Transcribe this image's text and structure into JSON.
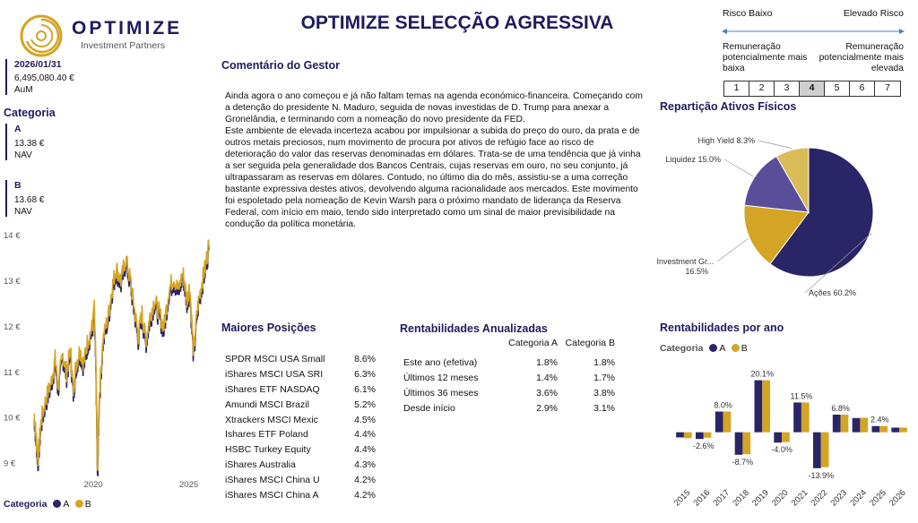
{
  "brand": {
    "name": "OPTIMIZE",
    "sub": "Investment Partners"
  },
  "title": "OPTIMIZE SELECÇÃO AGRESSIVA",
  "kpi": {
    "date": "2026/01/31",
    "aum_value": "6,495,080.40 €",
    "aum_label": "AuM"
  },
  "categoria_title": "Categoria",
  "classes": [
    {
      "name": "A",
      "value": "13.38 €",
      "label": "NAV"
    },
    {
      "name": "B",
      "value": "13.68 €",
      "label": "NAV"
    }
  ],
  "colors": {
    "navy": "#2a2566",
    "gold": "#d4a424",
    "purple": "#5a4d9a",
    "sand": "#d9bc55",
    "accent": "#1f1b5e"
  },
  "risk": {
    "low": "Risco Baixo",
    "high": "Elevado Risco",
    "low_desc": "Remuneração potencialmente mais baixa",
    "high_desc": "Remuneração potencialmente mais elevada",
    "levels": [
      "1",
      "2",
      "3",
      "4",
      "5",
      "6",
      "7"
    ],
    "selected": "4"
  },
  "comment": {
    "title": "Comentário do Gestor",
    "text": "Ainda agora o ano começou e já não faltam temas na agenda económico-financeira. Começando com a detenção do presidente N. Maduro, seguida de novas investidas de D. Trump para anexar a Gronelândia, e terminando com a nomeação do novo presidente da FED.\nEste ambiente de elevada incerteza acabou por impulsionar a subida do preço do ouro, da prata e de outros metais preciosos, num movimento de procura por ativos de refúgio face ao risco de deterioração do valor das reservas denominadas em dólares. Trata-se de uma tendência que já vinha a ser seguida pela generalidade dos Bancos Centrais, cujas reservas em ouro, no seu conjunto, já ultrapassaram as reservas em dólares. Contudo, no último dia do mês, assistiu-se a uma correção bastante expressiva destes ativos, devolvendo alguma racionalidade aos mercados. Este movimento foi espoletado pela nomeação de Kevin Warsh para o próximo mandato de liderança da Reserva Federal, com início em maio, tendo sido interpretado como um sinal de maior previsibilidade na condução da política monetária."
  },
  "positions": {
    "title": "Maiores Posições",
    "rows": [
      {
        "name": "SPDR MSCI USA Small",
        "weight": "8.6%"
      },
      {
        "name": "iShares MSCI USA SRI",
        "weight": "6.3%"
      },
      {
        "name": "iShares ETF NASDAQ",
        "weight": "6.1%"
      },
      {
        "name": "Amundi MSCI Brazil",
        "weight": "5.2%"
      },
      {
        "name": "Xtrackers MSCI Mexic",
        "weight": "4.5%"
      },
      {
        "name": "Ishares ETF Poland",
        "weight": "4.4%"
      },
      {
        "name": "HSBC Turkey Equity",
        "weight": "4.4%"
      },
      {
        "name": "iShares Australia",
        "weight": "4.3%"
      },
      {
        "name": "iShares MSCI China U",
        "weight": "4.2%"
      },
      {
        "name": "iShares MSCI China A",
        "weight": "4.2%"
      }
    ]
  },
  "annualized": {
    "title": "Rentabilidades Anualizadas",
    "col_a": "Categoria A",
    "col_b": "Categoria B",
    "rows": [
      {
        "label": "Este ano (efetiva)",
        "a": "1.8%",
        "b": "1.8%"
      },
      {
        "label": "Últimos 12 meses",
        "a": "1.4%",
        "b": "1.7%"
      },
      {
        "label": "Últimos 36 meses",
        "a": "3.6%",
        "b": "3.8%"
      },
      {
        "label": "Desde início",
        "a": "2.9%",
        "b": "3.1%"
      }
    ]
  },
  "legend": {
    "title": "Categoria",
    "a": "A",
    "b": "B"
  },
  "chart_data": [
    {
      "type": "line",
      "yticks": [
        "9 €",
        "10 €",
        "11 €",
        "12 €",
        "13 €",
        "14 €"
      ],
      "ylim": [
        8.6,
        14.1
      ],
      "xticks": [
        "2020",
        "2025"
      ],
      "xlim": [
        2016.8,
        2026.1
      ],
      "series": [
        {
          "name": "A",
          "color": "#2a2566"
        },
        {
          "name": "B",
          "color": "#d4a424"
        }
      ],
      "points": [
        [
          2016.9,
          10.1
        ],
        [
          2017.0,
          9.6
        ],
        [
          2017.1,
          9.1
        ],
        [
          2017.25,
          9.9
        ],
        [
          2017.5,
          10.4
        ],
        [
          2017.8,
          10.8
        ],
        [
          2018.0,
          11.3
        ],
        [
          2018.15,
          10.7
        ],
        [
          2018.4,
          11.4
        ],
        [
          2018.6,
          11.0
        ],
        [
          2018.8,
          11.5
        ],
        [
          2018.95,
          10.6
        ],
        [
          2019.1,
          11.2
        ],
        [
          2019.3,
          11.5
        ],
        [
          2019.5,
          11.2
        ],
        [
          2019.7,
          11.7
        ],
        [
          2019.95,
          12.0
        ],
        [
          2020.05,
          12.4
        ],
        [
          2020.15,
          10.8
        ],
        [
          2020.22,
          8.7
        ],
        [
          2020.3,
          10.4
        ],
        [
          2020.5,
          11.7
        ],
        [
          2020.8,
          12.3
        ],
        [
          2021.0,
          12.9
        ],
        [
          2021.2,
          13.3
        ],
        [
          2021.45,
          13.0
        ],
        [
          2021.7,
          13.5
        ],
        [
          2021.95,
          13.0
        ],
        [
          2022.15,
          12.4
        ],
        [
          2022.35,
          11.8
        ],
        [
          2022.55,
          12.3
        ],
        [
          2022.75,
          11.7
        ],
        [
          2022.95,
          12.2
        ],
        [
          2023.2,
          12.6
        ],
        [
          2023.45,
          12.3
        ],
        [
          2023.7,
          12.0
        ],
        [
          2023.95,
          12.8
        ],
        [
          2024.2,
          13.1
        ],
        [
          2024.45,
          12.8
        ],
        [
          2024.7,
          13.2
        ],
        [
          2024.9,
          12.6
        ],
        [
          2025.05,
          12.9
        ],
        [
          2025.25,
          11.4
        ],
        [
          2025.45,
          12.4
        ],
        [
          2025.65,
          12.9
        ],
        [
          2025.85,
          13.3
        ],
        [
          2026.05,
          13.8
        ]
      ]
    },
    {
      "type": "pie",
      "title": "Repartição Ativos Físicos",
      "slices": [
        {
          "label": "Ações 60.2%",
          "value": 60.2,
          "color": "#2a2566"
        },
        {
          "label": "Investment Gr...",
          "label2": "16.5%",
          "value": 16.5,
          "color": "#d4a424"
        },
        {
          "label": "Liquidez 15.0%",
          "value": 15.0,
          "color": "#5a4d9a"
        },
        {
          "label": "High Yield 8.3%",
          "value": 8.3,
          "color": "#d9bc55"
        }
      ]
    },
    {
      "type": "bar",
      "title": "Rentabilidades por ano",
      "categories": [
        "2015",
        "2016",
        "2017",
        "2018",
        "2019",
        "2020",
        "2021",
        "2022",
        "2023",
        "2024",
        "2025",
        "2026"
      ],
      "series": [
        {
          "name": "A",
          "values": [
            -2.0,
            -2.6,
            8.0,
            -8.7,
            20.1,
            -4.0,
            11.5,
            -13.9,
            6.8,
            5.5,
            2.4,
            1.8
          ],
          "color": "#2a2566"
        },
        {
          "name": "B",
          "values": [
            -2.3,
            -2.1,
            8.0,
            -8.5,
            20.1,
            -3.8,
            11.5,
            -13.5,
            6.8,
            5.6,
            2.4,
            1.8
          ],
          "color": "#d4a424"
        }
      ],
      "labels": [
        {
          "cat": "2016",
          "text": "-2.6%",
          "value": -2.6
        },
        {
          "cat": "2017",
          "text": "8.0%",
          "value": 8.0
        },
        {
          "cat": "2018",
          "text": "-8.7%",
          "value": -8.7
        },
        {
          "cat": "2019",
          "text": "20.1%",
          "value": 20.1
        },
        {
          "cat": "2020",
          "text": "-4.0%",
          "value": -4.0
        },
        {
          "cat": "2021",
          "text": "11.5%",
          "value": 11.5
        },
        {
          "cat": "2022",
          "text": "-13.9%",
          "value": -13.9
        },
        {
          "cat": "2023",
          "text": "6.8%",
          "value": 6.8
        },
        {
          "cat": "2025",
          "text": "2.4%",
          "value": 2.4
        }
      ],
      "ylim": [
        -15,
        21
      ]
    }
  ]
}
